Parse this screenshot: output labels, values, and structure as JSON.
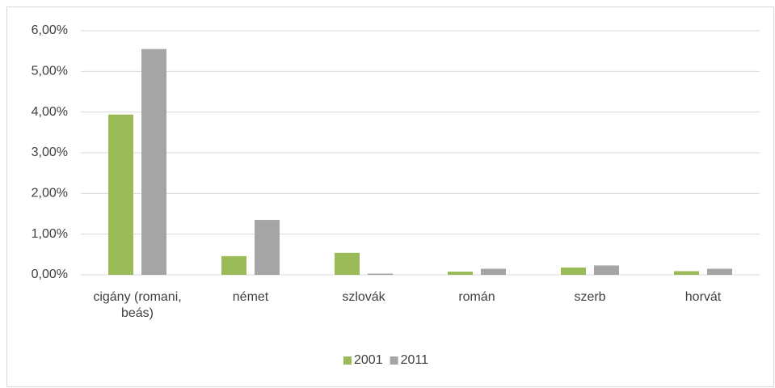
{
  "chart_data": {
    "type": "bar",
    "categories": [
      "cigány (romani, beás)",
      "német",
      "szlovák",
      "román",
      "szerb",
      "horvát"
    ],
    "series": [
      {
        "name": "2001",
        "color": "#9bbb59",
        "values": [
          3.94,
          0.46,
          0.54,
          0.08,
          0.18,
          0.09
        ]
      },
      {
        "name": "2011",
        "color": "#a5a5a5",
        "values": [
          5.55,
          1.35,
          0.03,
          0.15,
          0.23,
          0.15
        ]
      }
    ],
    "ylim": [
      0,
      6
    ],
    "yticks": [
      {
        "value": 0,
        "label": "0,00%"
      },
      {
        "value": 1,
        "label": "1,00%"
      },
      {
        "value": 2,
        "label": "2,00%"
      },
      {
        "value": 3,
        "label": "3,00%"
      },
      {
        "value": 4,
        "label": "4,00%"
      },
      {
        "value": 5,
        "label": "5,00%"
      },
      {
        "value": 6,
        "label": "6,00%"
      }
    ],
    "grid": true,
    "legend": "bottom"
  }
}
